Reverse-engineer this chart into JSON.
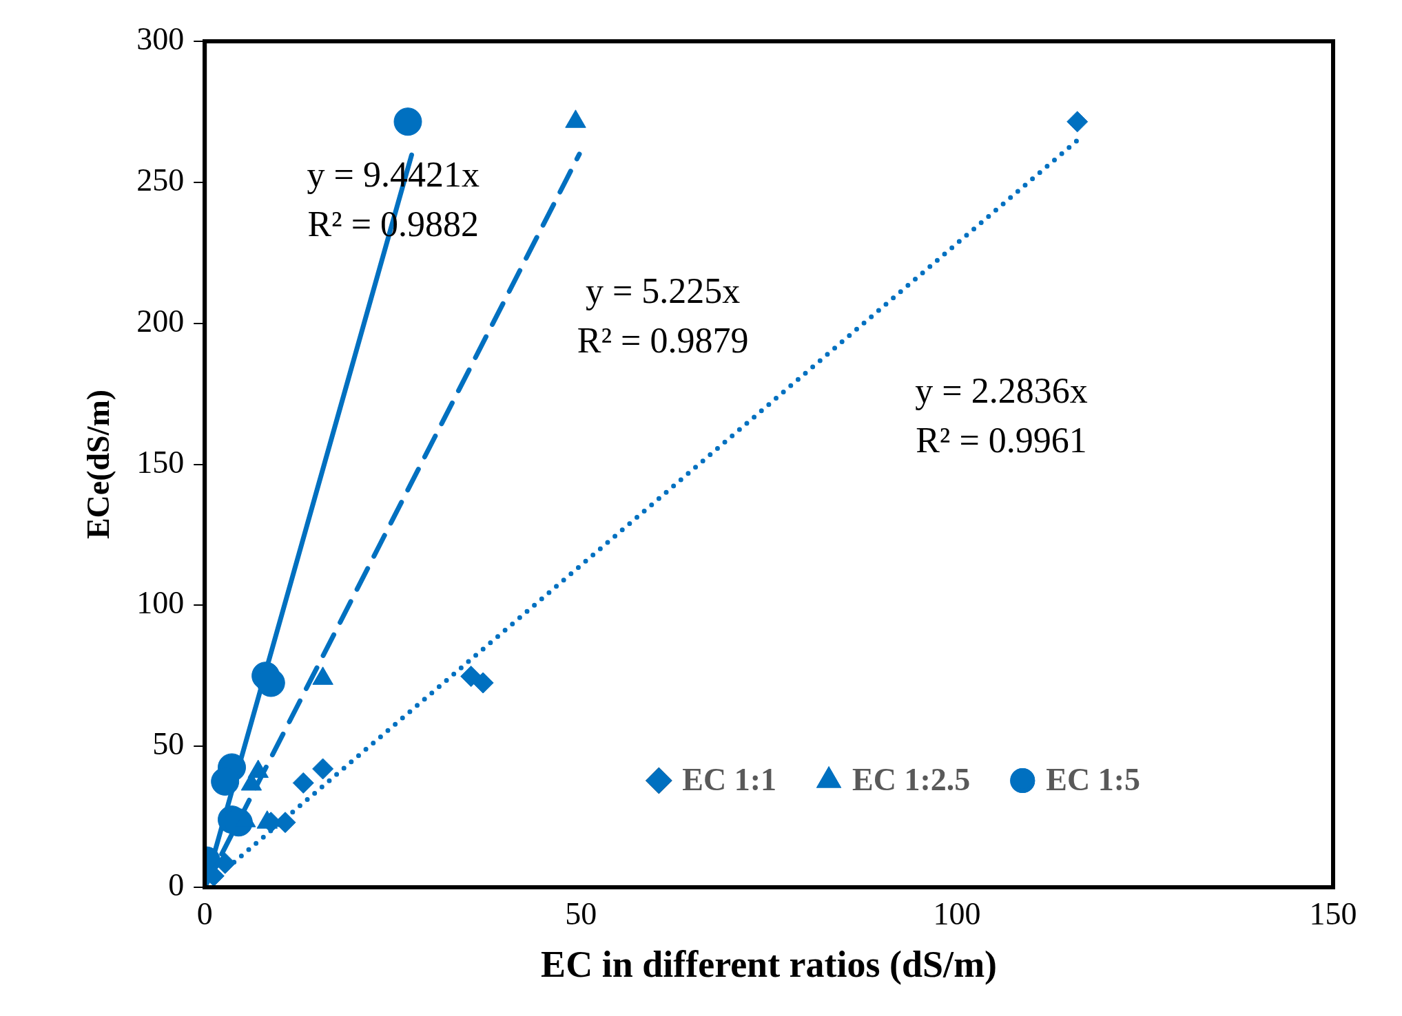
{
  "chart_data": {
    "type": "scatter",
    "xlabel": "EC in different ratios (dS/m)",
    "ylabel": "ECe(dS/m)",
    "xlim": [
      0,
      150
    ],
    "xticks": [
      0,
      50,
      100,
      150
    ],
    "ylim": [
      0,
      300
    ],
    "yticks": [
      0,
      50,
      100,
      150,
      200,
      250,
      300
    ],
    "grid": false,
    "legend": "bottom right",
    "series": [
      {
        "name": "EC 1:1",
        "marker": "diamond",
        "color": "#0070c0",
        "x": [
          116,
          35.4,
          37,
          13.1,
          15.7,
          10.7,
          8.8,
          2.7,
          1.2
        ],
        "values": [
          271.5,
          74.8,
          72.5,
          37,
          42,
          23,
          23,
          8.5,
          4
        ]
      },
      {
        "name": "EC 1:2.5",
        "marker": "triangle",
        "color": "#0070c0",
        "x": [
          49.3,
          15.7,
          7.1,
          6.2,
          8.3,
          5.4
        ],
        "values": [
          271.5,
          74,
          41,
          36.5,
          23,
          23.5
        ]
      },
      {
        "name": "EC 1:5",
        "marker": "circle",
        "color": "#0070c0",
        "x": [
          27,
          8.1,
          8.8,
          3.6,
          2.7,
          3.6,
          4.5,
          0.2
        ],
        "values": [
          271.5,
          75,
          72.5,
          42.5,
          37.5,
          24,
          23,
          9.5
        ]
      },
      {
        "type": "line",
        "marker": "none",
        "line_style": "dotted",
        "color": "#0070c0",
        "x": [
          0,
          116.5
        ],
        "values": [
          0,
          266
        ]
      },
      {
        "type": "line",
        "marker": "none",
        "line_style": "dashed",
        "color": "#0070c0",
        "x": [
          0,
          49.8
        ],
        "values": [
          0,
          260
        ]
      },
      {
        "type": "line",
        "marker": "none",
        "line_style": "solid",
        "color": "#0070c0",
        "x": [
          0,
          27.5
        ],
        "values": [
          0,
          259.7
        ]
      }
    ],
    "annotations": [
      "y = 9.4421x\nR² = 0.9882",
      "y = 5.225x\nR² = 0.9879",
      "y = 2.2836x\nR² = 0.9961"
    ]
  }
}
